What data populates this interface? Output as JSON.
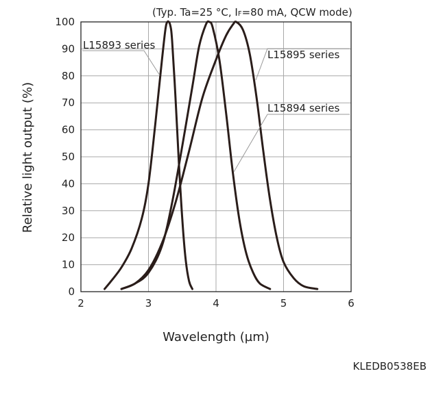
{
  "chart_data": {
    "type": "line",
    "conditions_prefix": "(Typ. Ta=25 °C, I",
    "conditions_sub": "F",
    "conditions_suffix": "=80 mA, QCW mode)",
    "xlabel": "Wavelength (µm)",
    "ylabel": "Relative light output (%)",
    "xlim": [
      2,
      6
    ],
    "ylim": [
      0,
      100
    ],
    "x_ticks": [
      "2",
      "3",
      "4",
      "5",
      "6"
    ],
    "y_ticks": [
      "0",
      "10",
      "20",
      "30",
      "40",
      "50",
      "60",
      "70",
      "80",
      "90",
      "100"
    ],
    "grid": true,
    "document_code": "KLEDB0538EB",
    "series": [
      {
        "name": "L15893 series",
        "points": [
          [
            2.35,
            1
          ],
          [
            2.45,
            4
          ],
          [
            2.6,
            9
          ],
          [
            2.75,
            16
          ],
          [
            2.9,
            27
          ],
          [
            3.0,
            40
          ],
          [
            3.1,
            62
          ],
          [
            3.2,
            86
          ],
          [
            3.25,
            97
          ],
          [
            3.28,
            100
          ],
          [
            3.32,
            99
          ],
          [
            3.35,
            93
          ],
          [
            3.4,
            72
          ],
          [
            3.45,
            48
          ],
          [
            3.5,
            27
          ],
          [
            3.55,
            12
          ],
          [
            3.6,
            4
          ],
          [
            3.65,
            1
          ]
        ]
      },
      {
        "name": "L15894 series",
        "points": [
          [
            2.6,
            1
          ],
          [
            2.8,
            3
          ],
          [
            3.0,
            8
          ],
          [
            3.2,
            18
          ],
          [
            3.4,
            33
          ],
          [
            3.6,
            52
          ],
          [
            3.8,
            72
          ],
          [
            4.0,
            86
          ],
          [
            4.15,
            95
          ],
          [
            4.25,
            99
          ],
          [
            4.3,
            100
          ],
          [
            4.4,
            97
          ],
          [
            4.5,
            88
          ],
          [
            4.6,
            72
          ],
          [
            4.7,
            52
          ],
          [
            4.8,
            34
          ],
          [
            4.9,
            20
          ],
          [
            5.0,
            11
          ],
          [
            5.15,
            5
          ],
          [
            5.3,
            2
          ],
          [
            5.5,
            1
          ]
        ]
      },
      {
        "name": "L15895 series",
        "points": [
          [
            2.6,
            1
          ],
          [
            2.8,
            3
          ],
          [
            3.0,
            7
          ],
          [
            3.2,
            17
          ],
          [
            3.35,
            33
          ],
          [
            3.5,
            54
          ],
          [
            3.65,
            76
          ],
          [
            3.75,
            91
          ],
          [
            3.85,
            99
          ],
          [
            3.9,
            100
          ],
          [
            3.95,
            98
          ],
          [
            4.05,
            86
          ],
          [
            4.15,
            66
          ],
          [
            4.25,
            44
          ],
          [
            4.35,
            26
          ],
          [
            4.45,
            14
          ],
          [
            4.55,
            7
          ],
          [
            4.65,
            3
          ],
          [
            4.8,
            1
          ]
        ]
      }
    ]
  }
}
